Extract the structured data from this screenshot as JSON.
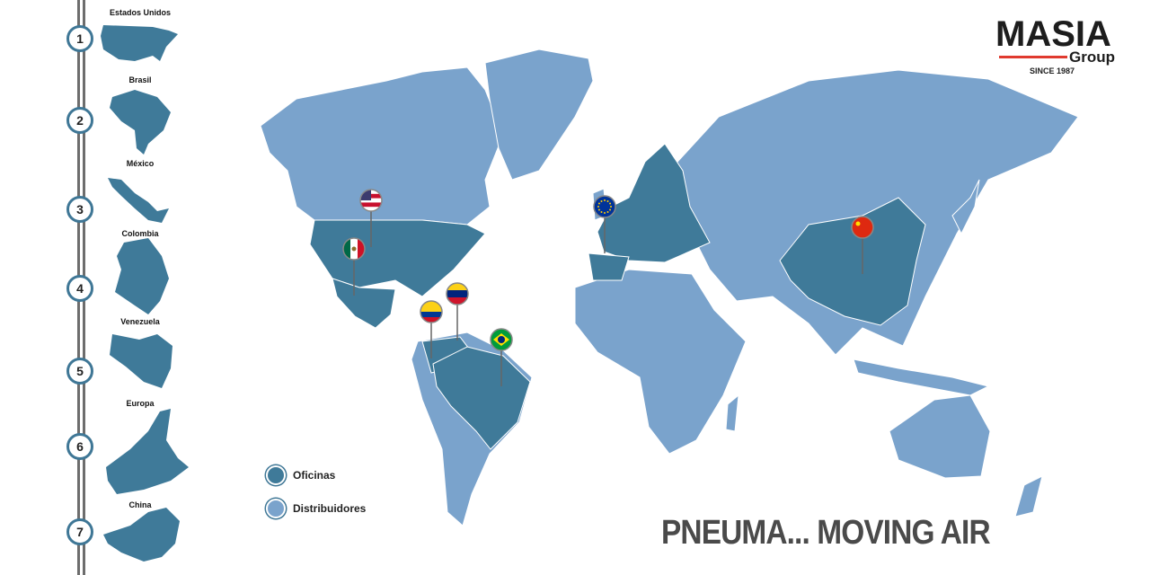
{
  "brand": {
    "name": "MASIA",
    "sub": "Group",
    "since": "SINCE 1987"
  },
  "slogan": "PNEUMA... MOVING AIR",
  "colors": {
    "offices": "#3f7a99",
    "distributors": "#7aa3cc",
    "accent": "#e03a2f"
  },
  "timeline": [
    {
      "n": "1",
      "label": "Estados Unidos"
    },
    {
      "n": "2",
      "label": "Brasil"
    },
    {
      "n": "3",
      "label": "México"
    },
    {
      "n": "4",
      "label": "Colombia"
    },
    {
      "n": "5",
      "label": "Venezuela"
    },
    {
      "n": "6",
      "label": "Europa"
    },
    {
      "n": "7",
      "label": "China"
    }
  ],
  "legend": {
    "offices": "Oficinas",
    "distributors": "Distribuidores"
  },
  "pins": [
    "usa-flag",
    "mexico-flag",
    "colombia-flag",
    "venezuela-flag",
    "brazil-flag",
    "eu-flag",
    "china-flag"
  ]
}
